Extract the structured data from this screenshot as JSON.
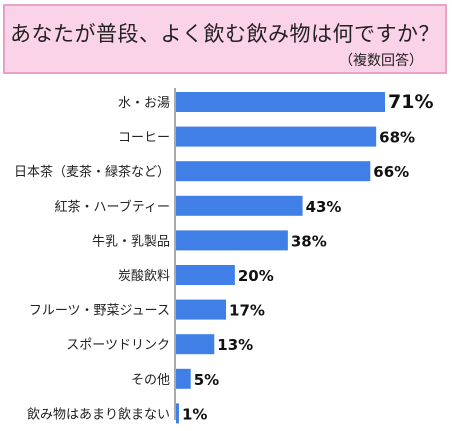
{
  "chart_data": {
    "type": "bar",
    "orientation": "horizontal",
    "title": "あなたが普段、よく飲む飲み物は何ですか？",
    "subtitle": "（複数回答）",
    "categories": [
      "水・お湯",
      "コーヒー",
      "日本茶（麦茶・緑茶など）",
      "紅茶・ハーブティー",
      "牛乳・乳製品",
      "炭酸飲料",
      "フルーツ・野菜ジュース",
      "スポーツドリンク",
      "その他",
      "飲み物はあまり飲まない"
    ],
    "values": [
      71,
      68,
      66,
      43,
      38,
      20,
      17,
      13,
      5,
      1
    ],
    "value_labels": [
      "71%",
      "68%",
      "66%",
      "43%",
      "38%",
      "20%",
      "17%",
      "13%",
      "5%",
      "1%"
    ],
    "unit": "%",
    "xlim": [
      0,
      71
    ],
    "bar_color": "#3f7fe6",
    "title_bg": "#fbd3e8",
    "title_border": "#e6a3c6",
    "grid": false,
    "legend": "none"
  }
}
